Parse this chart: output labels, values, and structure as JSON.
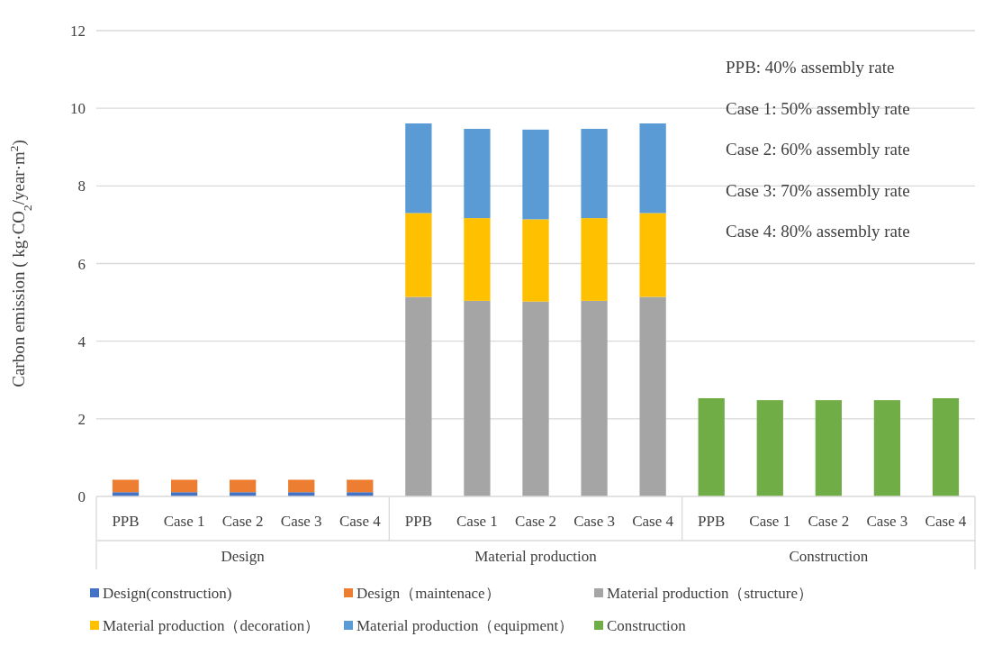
{
  "chart_data": {
    "type": "bar",
    "stacked": true,
    "ylabel": "Carbon emission ( kg·CO$_{2}$/year·m$^{2}$)",
    "categories": [
      "PPB",
      "Case 1",
      "Case 2",
      "Case 3",
      "Case 4",
      "PPB",
      "Case 1",
      "Case 2",
      "Case 3",
      "Case 4",
      "PPB",
      "Case 1",
      "Case 2",
      "Case 3",
      "Case 4"
    ],
    "series": [
      {
        "name": "Design(construction)",
        "color": "#4472c4",
        "values": [
          0.11,
          0.11,
          0.11,
          0.11,
          0.11,
          null,
          null,
          null,
          null,
          null,
          null,
          null,
          null,
          null,
          null
        ]
      },
      {
        "name": "Design（maintenace）",
        "color": "#ed7d31",
        "values": [
          0.32,
          0.32,
          0.32,
          0.32,
          0.32,
          null,
          null,
          null,
          null,
          null,
          null,
          null,
          null,
          null,
          null
        ]
      },
      {
        "name": "Material production（structure）",
        "color": "#a5a5a5",
        "values": [
          null,
          null,
          null,
          null,
          null,
          5.14,
          5.04,
          5.02,
          5.04,
          5.14,
          null,
          null,
          null,
          null,
          null
        ]
      },
      {
        "name": "Material production（decoration）",
        "color": "#ffc000",
        "values": [
          null,
          null,
          null,
          null,
          null,
          2.16,
          2.13,
          2.12,
          2.13,
          2.16,
          null,
          null,
          null,
          null,
          null
        ]
      },
      {
        "name": "Material production（equipment）",
        "color": "#5b9bd5",
        "values": [
          null,
          null,
          null,
          null,
          null,
          2.31,
          2.3,
          2.31,
          2.3,
          2.31,
          null,
          null,
          null,
          null,
          null
        ]
      },
      {
        "name": "Construction",
        "color": "#70ad47",
        "values": [
          null,
          null,
          null,
          null,
          null,
          null,
          null,
          null,
          null,
          null,
          2.53,
          2.48,
          2.48,
          2.48,
          2.53
        ]
      }
    ],
    "ylim": [
      0,
      12
    ],
    "yticks": [
      0,
      2,
      4,
      6,
      8,
      10,
      12
    ],
    "grid": "y",
    "legend": "bottom",
    "annotations": [
      "Design",
      "Material production",
      "Construction",
      "PPB: 40% assembly rate",
      "Case 1: 50% assembly rate",
      "Case 2: 60% assembly rate",
      "Case 3: 70% assembly rate",
      "Case 4: 80% assembly rate"
    ]
  }
}
